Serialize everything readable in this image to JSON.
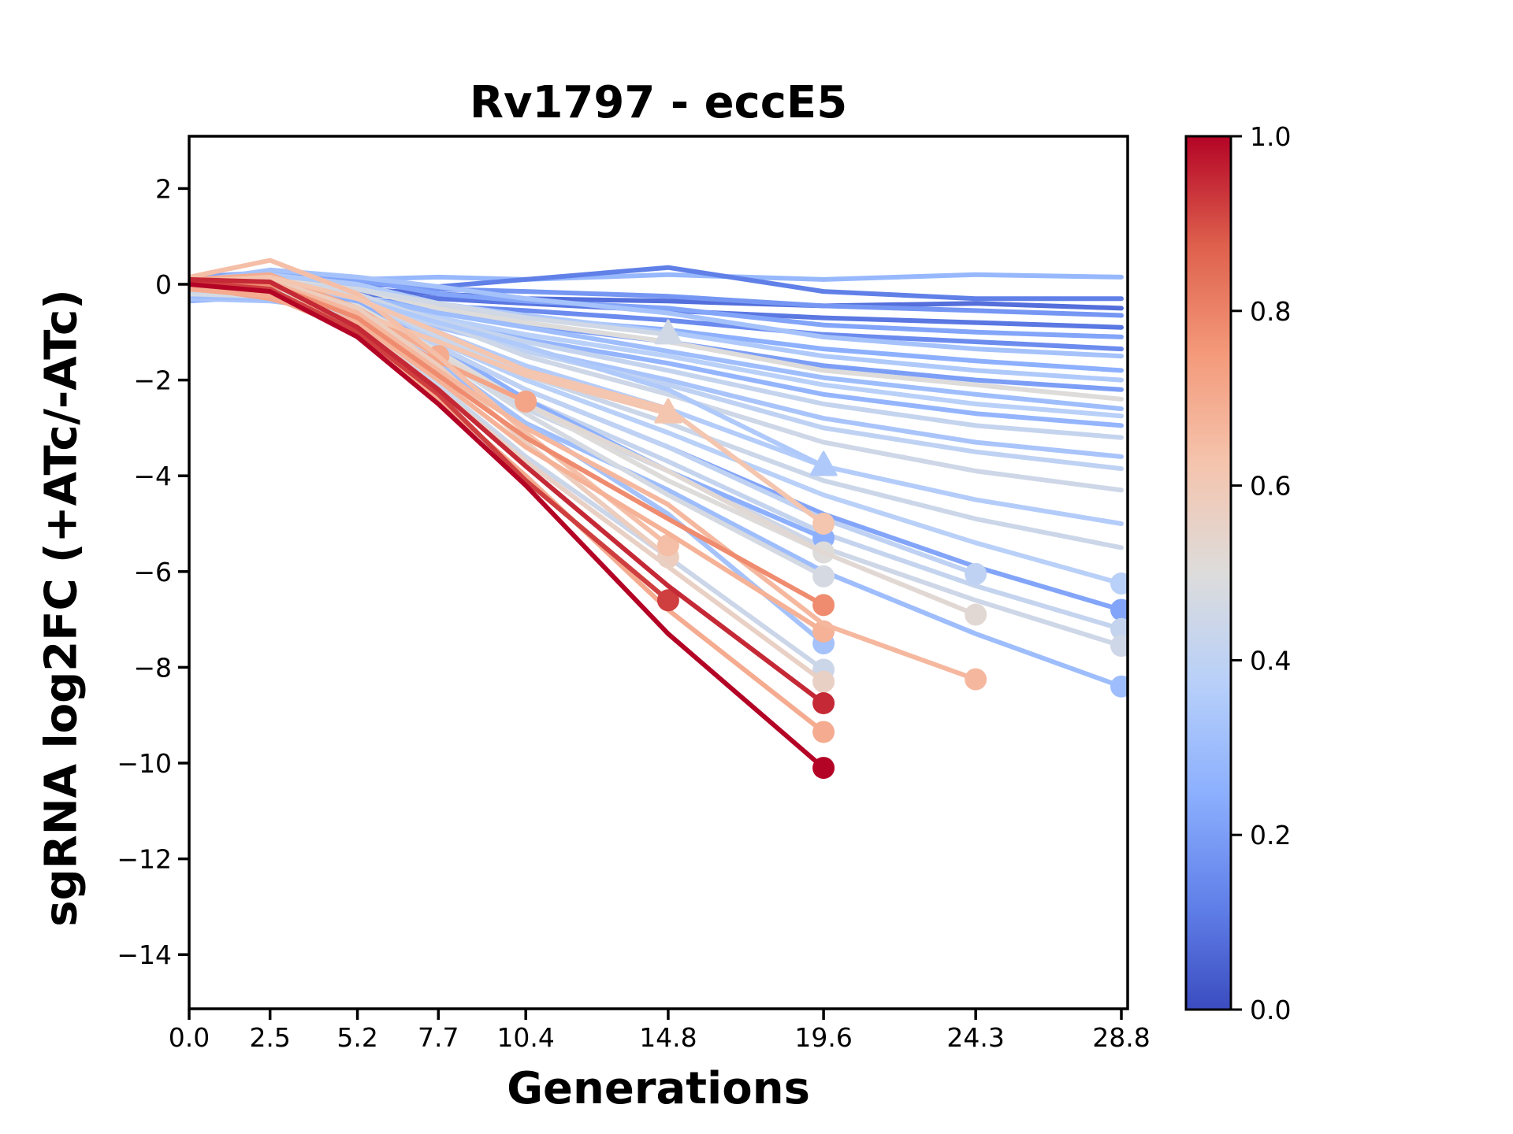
{
  "chart_data": {
    "type": "line",
    "title": "Rv1797 - eccE5",
    "xlabel": "Generations",
    "ylabel": "sgRNA log2FC (+ATc/-ATc)",
    "x_ticks": [
      0.0,
      2.5,
      5.2,
      7.7,
      10.4,
      14.8,
      19.6,
      24.3,
      28.8
    ],
    "x_tick_labels": [
      "0.0",
      "2.5",
      "5.2",
      "7.7",
      "10.4",
      "14.8",
      "19.6",
      "24.3",
      "28.8"
    ],
    "y_ticks": [
      2,
      0,
      -2,
      -4,
      -6,
      -8,
      -10,
      -12,
      -14
    ],
    "y_tick_labels": [
      "2",
      "0",
      "−2",
      "−4",
      "−6",
      "−8",
      "−10",
      "−12",
      "−14"
    ],
    "xlim": [
      0,
      29.0
    ],
    "ylim": [
      -15.1,
      3.1
    ],
    "grid": false,
    "legend": "none",
    "colorbar": {
      "position": "right",
      "ticks": [
        1.0,
        0.8,
        0.6,
        0.4,
        0.2,
        0.0
      ],
      "tick_labels": [
        "1.0",
        "0.8",
        "0.6",
        "0.4",
        "0.2",
        "0.0"
      ],
      "cmap": "coolwarm",
      "cmap_anchors": [
        {
          "t": 0.0,
          "rgb": [
            59,
            76,
            192
          ]
        },
        {
          "t": 0.125,
          "rgb": [
            98,
            130,
            234
          ]
        },
        {
          "t": 0.25,
          "rgb": [
            141,
            176,
            254
          ]
        },
        {
          "t": 0.375,
          "rgb": [
            184,
            208,
            249
          ]
        },
        {
          "t": 0.5,
          "rgb": [
            221,
            220,
            219
          ]
        },
        {
          "t": 0.625,
          "rgb": [
            245,
            196,
            173
          ]
        },
        {
          "t": 0.75,
          "rgb": [
            244,
            154,
            123
          ]
        },
        {
          "t": 0.875,
          "rgb": [
            222,
            96,
            77
          ]
        },
        {
          "t": 1.0,
          "rgb": [
            180,
            4,
            38
          ]
        }
      ]
    },
    "series_note": "Each series: c = colormap value (0-1), y = sgRNA log2FC at successive x_ticks; marker drawn at final point when line drops out ('circle' or 'triangle').",
    "series": [
      {
        "c": 0.28,
        "marker": null,
        "y": [
          0.1,
          0.15,
          0.1,
          0.15,
          0.1,
          0.2,
          0.1,
          0.2,
          0.15
        ]
      },
      {
        "c": 0.12,
        "marker": null,
        "y": [
          -0.05,
          0.05,
          0.0,
          -0.05,
          0.1,
          0.35,
          -0.15,
          -0.3,
          -0.3
        ]
      },
      {
        "c": 0.08,
        "marker": null,
        "y": [
          -0.1,
          -0.15,
          -0.1,
          -0.2,
          -0.3,
          -0.35,
          -0.45,
          -0.4,
          -0.5
        ]
      },
      {
        "c": 0.18,
        "marker": null,
        "y": [
          0.1,
          0.15,
          0.05,
          -0.1,
          -0.15,
          -0.25,
          -0.45,
          -0.55,
          -0.65
        ]
      },
      {
        "c": 0.1,
        "marker": null,
        "y": [
          -0.2,
          -0.1,
          -0.2,
          -0.3,
          -0.4,
          -0.55,
          -0.7,
          -0.8,
          -0.9
        ]
      },
      {
        "c": 0.22,
        "marker": null,
        "y": [
          0.15,
          0.25,
          0.1,
          -0.2,
          -0.35,
          -0.5,
          -0.85,
          -1.0,
          -1.1
        ]
      },
      {
        "c": 0.15,
        "marker": null,
        "y": [
          -0.3,
          -0.2,
          -0.3,
          -0.45,
          -0.55,
          -0.75,
          -1.05,
          -1.2,
          -1.35
        ]
      },
      {
        "c": 0.32,
        "marker": null,
        "y": [
          0.05,
          0.3,
          0.15,
          -0.05,
          -0.3,
          -0.6,
          -1.1,
          -1.35,
          -1.5
        ]
      },
      {
        "c": 0.25,
        "marker": null,
        "y": [
          -0.15,
          -0.1,
          -0.3,
          -0.5,
          -0.7,
          -0.95,
          -1.35,
          -1.6,
          -1.8
        ]
      },
      {
        "c": 0.35,
        "marker": null,
        "y": [
          0.1,
          0.2,
          0.0,
          -0.4,
          -0.65,
          -1.0,
          -1.5,
          -1.8,
          -2.0
        ]
      },
      {
        "c": 0.2,
        "marker": null,
        "y": [
          -0.25,
          -0.3,
          -0.4,
          -0.6,
          -0.85,
          -1.2,
          -1.7,
          -2.0,
          -2.2
        ]
      },
      {
        "c": 0.5,
        "marker": null,
        "y": [
          0.0,
          0.1,
          -0.1,
          -0.5,
          -0.8,
          -1.2,
          -1.8,
          -2.1,
          -2.4
        ]
      },
      {
        "c": 0.3,
        "marker": null,
        "y": [
          -0.1,
          0.0,
          -0.25,
          -0.6,
          -0.9,
          -1.4,
          -1.95,
          -2.3,
          -2.6
        ]
      },
      {
        "c": 0.38,
        "marker": null,
        "y": [
          -0.2,
          -0.15,
          -0.35,
          -0.7,
          -1.05,
          -1.5,
          -2.1,
          -2.5,
          -2.75
        ]
      },
      {
        "c": 0.27,
        "marker": null,
        "y": [
          -0.35,
          -0.25,
          -0.45,
          -0.8,
          -1.15,
          -1.65,
          -2.3,
          -2.7,
          -2.95
        ]
      },
      {
        "c": 0.42,
        "marker": null,
        "y": [
          0.0,
          -0.1,
          -0.3,
          -0.75,
          -1.2,
          -1.8,
          -2.5,
          -2.95,
          -3.2
        ]
      },
      {
        "c": 0.33,
        "marker": null,
        "y": [
          -0.3,
          -0.35,
          -0.55,
          -0.9,
          -1.35,
          -2.0,
          -2.8,
          -3.3,
          -3.6
        ]
      },
      {
        "c": 0.4,
        "marker": null,
        "y": [
          -0.15,
          -0.2,
          -0.45,
          -0.85,
          -1.4,
          -2.1,
          -3.0,
          -3.5,
          -3.85
        ]
      },
      {
        "c": 0.45,
        "marker": null,
        "y": [
          0.05,
          0.1,
          -0.2,
          -0.8,
          -1.5,
          -2.3,
          -3.3,
          -3.9,
          -4.3
        ]
      },
      {
        "c": 0.36,
        "marker": null,
        "y": [
          -0.2,
          -0.25,
          -0.5,
          -1.0,
          -1.7,
          -2.6,
          -3.8,
          -4.5,
          -5.0
        ]
      },
      {
        "c": 0.44,
        "marker": null,
        "y": [
          0.1,
          0.0,
          -0.4,
          -1.1,
          -1.9,
          -2.9,
          -4.1,
          -4.9,
          -5.5
        ]
      },
      {
        "c": 0.38,
        "marker": "circle",
        "y": [
          0.0,
          -0.1,
          -0.4,
          -1.2,
          -2.0,
          -3.1,
          -4.4,
          -5.4,
          -6.25
        ]
      },
      {
        "c": 0.22,
        "marker": "circle",
        "y": [
          -0.1,
          -0.2,
          -0.5,
          -1.3,
          -2.2,
          -3.4,
          -4.8,
          -5.9,
          -6.8
        ]
      },
      {
        "c": 0.42,
        "marker": "circle",
        "y": [
          -0.15,
          -0.1,
          -0.55,
          -1.4,
          -2.4,
          -3.7,
          -5.2,
          -6.3,
          -7.2
        ]
      },
      {
        "c": 0.45,
        "marker": "circle",
        "y": [
          0.05,
          -0.15,
          -0.6,
          -1.5,
          -2.6,
          -3.9,
          -5.5,
          -6.6,
          -7.55
        ]
      },
      {
        "c": 0.3,
        "marker": "circle",
        "y": [
          -0.25,
          -0.3,
          -0.7,
          -1.7,
          -2.9,
          -4.3,
          -6.0,
          -7.3,
          -8.4
        ]
      },
      {
        "c": 0.35,
        "marker": "triangle",
        "y": [
          -0.15,
          -0.05,
          -0.3,
          -0.8,
          -1.3,
          -2.2,
          -3.8
        ]
      },
      {
        "c": 0.25,
        "marker": "circle",
        "y": [
          -0.1,
          -0.05,
          -0.4,
          -1.3,
          -2.4,
          -3.9,
          -5.3
        ]
      },
      {
        "c": 0.32,
        "marker": "circle",
        "y": [
          -0.2,
          -0.3,
          -0.6,
          -1.6,
          -2.9,
          -4.8,
          -7.5
        ]
      },
      {
        "c": 0.4,
        "marker": "circle",
        "y": [
          0.0,
          -0.05,
          -0.5,
          -1.3,
          -2.2,
          -3.4,
          -4.9,
          -6.05
        ]
      },
      {
        "c": 0.5,
        "marker": "circle",
        "y": [
          0.0,
          -0.1,
          -0.45,
          -1.4,
          -2.5,
          -4.1,
          -5.6
        ]
      },
      {
        "c": 0.47,
        "marker": "circle",
        "y": [
          -0.2,
          -0.25,
          -0.5,
          -1.5,
          -2.7,
          -4.4,
          -6.1
        ]
      },
      {
        "c": 0.44,
        "marker": "circle",
        "y": [
          -0.15,
          -0.1,
          -0.75,
          -2.1,
          -3.6,
          -5.7,
          -8.05
        ]
      },
      {
        "c": 0.46,
        "marker": "triangle",
        "y": [
          0.0,
          0.05,
          -0.1,
          -0.4,
          -0.7,
          -1.05
        ]
      },
      {
        "c": 0.52,
        "marker": "circle",
        "y": [
          -0.1,
          -0.15,
          -0.55,
          -1.5,
          -2.5,
          -3.9,
          -5.6,
          -6.9
        ]
      },
      {
        "c": 0.7,
        "marker": "circle",
        "y": [
          0.1,
          0.2,
          -0.5,
          -1.5
        ]
      },
      {
        "c": 0.72,
        "marker": "circle",
        "y": [
          -0.05,
          -0.3,
          -0.8,
          -1.6,
          -2.45
        ]
      },
      {
        "c": 0.62,
        "marker": "triangle",
        "y": [
          -0.1,
          -0.2,
          -0.6,
          -1.2,
          -1.9,
          -2.7
        ]
      },
      {
        "c": 0.58,
        "marker": "circle",
        "y": [
          -0.05,
          0.1,
          -0.5,
          -1.7,
          -3.3,
          -5.7
        ]
      },
      {
        "c": 0.64,
        "marker": "circle",
        "y": [
          0.15,
          0.5,
          -0.2,
          -1.5,
          -3.1,
          -5.45
        ]
      },
      {
        "c": 0.62,
        "marker": "circle",
        "y": [
          0.05,
          0.15,
          -0.3,
          -1.0,
          -1.8,
          -2.6,
          -5.0
        ]
      },
      {
        "c": 0.56,
        "marker": "circle",
        "y": [
          0.05,
          -0.15,
          -0.85,
          -2.2,
          -3.7,
          -5.9,
          -8.3
        ]
      },
      {
        "c": 0.68,
        "marker": "circle",
        "y": [
          -0.05,
          -0.2,
          -0.8,
          -2.0,
          -3.4,
          -5.2,
          -7.25
        ]
      },
      {
        "c": 0.66,
        "marker": "circle",
        "y": [
          0.1,
          0.05,
          -0.6,
          -1.8,
          -3.0,
          -4.6,
          -7.1,
          -8.25
        ]
      },
      {
        "c": 0.7,
        "marker": "circle",
        "y": [
          -0.1,
          -0.25,
          -1.0,
          -2.4,
          -4.0,
          -6.8,
          -9.35
        ]
      },
      {
        "c": 0.78,
        "marker": "circle",
        "y": [
          0.1,
          0.0,
          -0.7,
          -1.9,
          -3.2,
          -4.9,
          -6.7
        ]
      },
      {
        "c": 0.92,
        "marker": "circle",
        "y": [
          0.05,
          -0.1,
          -1.0,
          -2.3,
          -4.1,
          -6.6
        ]
      },
      {
        "c": 0.95,
        "marker": "circle",
        "y": [
          0.1,
          0.05,
          -0.9,
          -2.2,
          -3.8,
          -6.3,
          -8.75
        ]
      },
      {
        "c": 1.0,
        "marker": "circle",
        "y": [
          0.0,
          -0.15,
          -1.1,
          -2.5,
          -4.2,
          -7.3,
          -10.1
        ]
      }
    ]
  }
}
